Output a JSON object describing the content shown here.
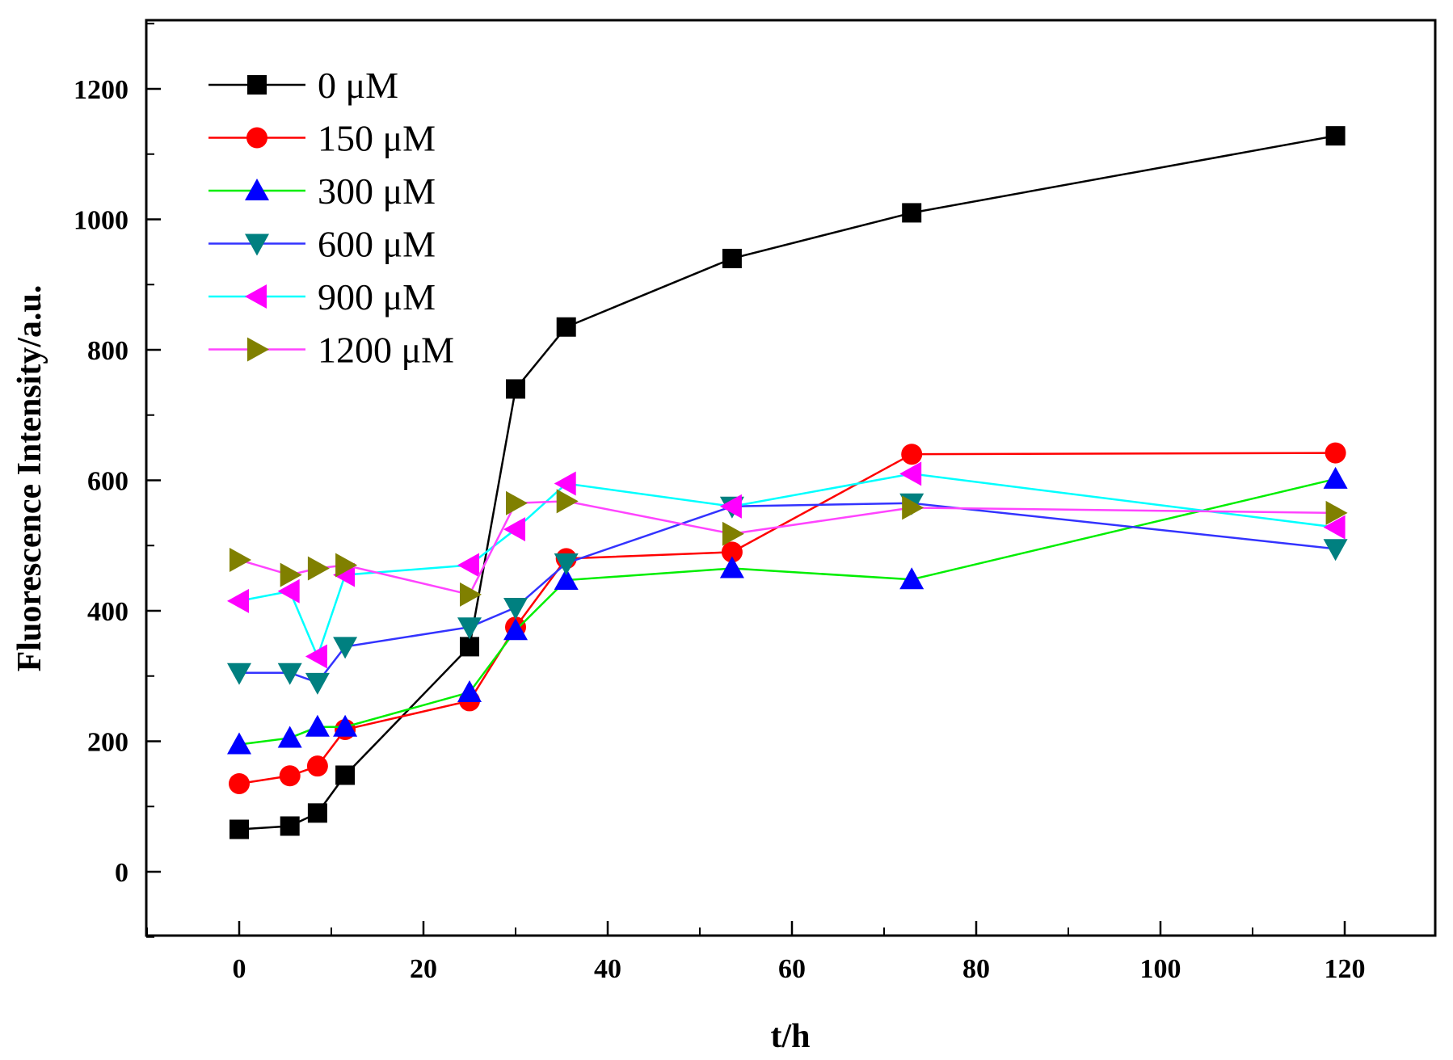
{
  "chart_data": {
    "type": "line",
    "title": "",
    "xlabel": "t/h",
    "ylabel": "Fluorescence Intensity/a.u.",
    "xlim": [
      -10,
      130
    ],
    "ylim": [
      -100,
      1300
    ],
    "x_ticks": [
      0,
      20,
      40,
      60,
      80,
      100,
      120
    ],
    "y_ticks": [
      0,
      200,
      400,
      600,
      800,
      1000,
      1200
    ],
    "x_tick_labels": [
      "0",
      "20",
      "40",
      "60",
      "80",
      "100",
      "120"
    ],
    "y_tick_labels": [
      "0",
      "200",
      "400",
      "600",
      "800",
      "1000",
      "1200"
    ],
    "grid": false,
    "legend_position": "top-left",
    "x": [
      0,
      5.5,
      8.5,
      11.5,
      25,
      30,
      35.5,
      53.5,
      73,
      119
    ],
    "series": [
      {
        "name": "0 μM",
        "line_color": "#000000",
        "marker_color": "#000000",
        "marker": "square",
        "values": [
          65,
          70,
          90,
          148,
          345,
          740,
          835,
          940,
          1010,
          1128
        ]
      },
      {
        "name": "150 μM",
        "line_color": "#ff0000",
        "marker_color": "#ff0000",
        "marker": "circle",
        "values": [
          135,
          147,
          162,
          218,
          262,
          375,
          480,
          490,
          640,
          642
        ]
      },
      {
        "name": "300 μM",
        "line_color": "#00ee00",
        "marker_color": "#0000ff",
        "marker": "triangle-up",
        "values": [
          195,
          205,
          222,
          222,
          275,
          370,
          447,
          465,
          448,
          602
        ]
      },
      {
        "name": "600 μM",
        "line_color": "#3333ff",
        "marker_color": "#008080",
        "marker": "triangle-down",
        "values": [
          305,
          305,
          290,
          345,
          375,
          405,
          473,
          560,
          565,
          495
        ]
      },
      {
        "name": "900 μM",
        "line_color": "#00ffff",
        "marker_color": "#ff00ff",
        "marker": "triangle-left",
        "values": [
          415,
          430,
          330,
          455,
          470,
          525,
          595,
          560,
          610,
          528
        ]
      },
      {
        "name": "1200 μM",
        "line_color": "#ff44ff",
        "marker_color": "#808000",
        "marker": "triangle-right",
        "values": [
          478,
          455,
          465,
          470,
          425,
          565,
          568,
          518,
          558,
          550
        ]
      }
    ]
  }
}
